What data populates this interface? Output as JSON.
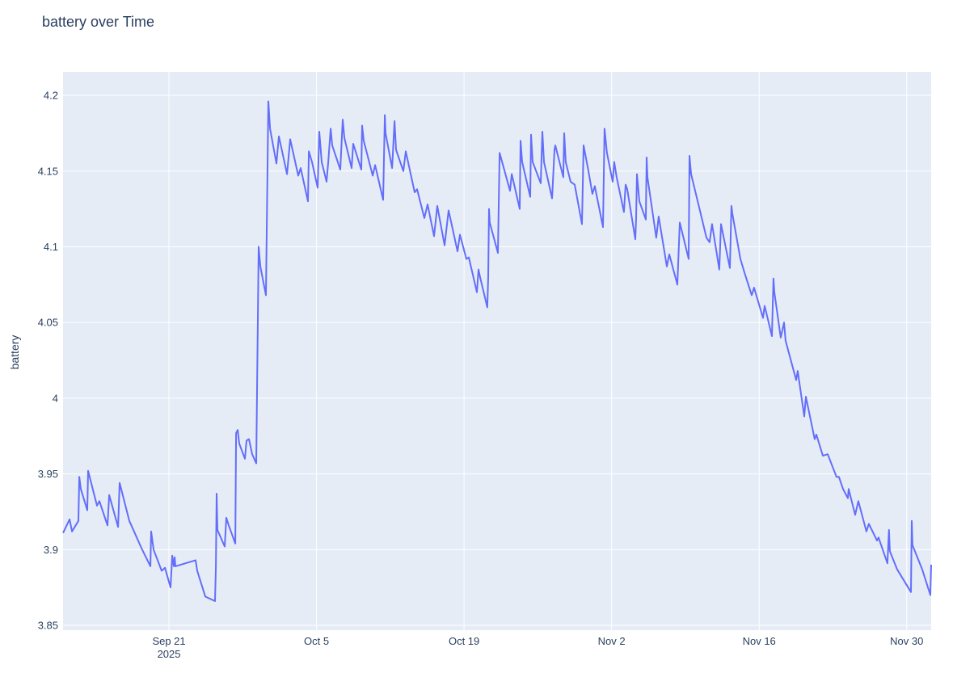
{
  "chart_data": {
    "type": "line",
    "title": "battery over Time",
    "xlabel": "",
    "ylabel": "battery",
    "x_unit": "days since 2025-09-21",
    "xlim": [
      -10.05,
      72.32
    ],
    "ylim": [
      3.8468,
      4.2155
    ],
    "grid": true,
    "legend": "none",
    "line_color": "#636efa",
    "background_color": "#e5ecf6",
    "grid_color": "#ffffff",
    "text_color": "#2a3f5f",
    "x_ticks": [
      {
        "value": 0,
        "label": "Sep 21",
        "sublabel": "2025"
      },
      {
        "value": 14,
        "label": "Oct 5"
      },
      {
        "value": 28,
        "label": "Oct 19"
      },
      {
        "value": 42,
        "label": "Nov 2"
      },
      {
        "value": 56,
        "label": "Nov 16"
      },
      {
        "value": 70,
        "label": "Nov 30"
      }
    ],
    "y_ticks": [
      {
        "value": 3.85,
        "label": "3.85"
      },
      {
        "value": 3.9,
        "label": "3.9"
      },
      {
        "value": 3.95,
        "label": "3.95"
      },
      {
        "value": 4.0,
        "label": "4"
      },
      {
        "value": 4.05,
        "label": "4.05"
      },
      {
        "value": 4.1,
        "label": "4.1"
      },
      {
        "value": 4.15,
        "label": "4.15"
      },
      {
        "value": 4.2,
        "label": "4.2"
      }
    ],
    "series": [
      {
        "name": "battery",
        "x": [
          -10.05,
          -9.43,
          -9.2,
          -8.59,
          -8.51,
          -8.36,
          -7.75,
          -7.67,
          -6.83,
          -6.6,
          -5.83,
          -5.67,
          -4.83,
          -4.68,
          -3.76,
          -2.61,
          -1.76,
          -1.69,
          -1.46,
          -0.69,
          -0.38,
          0.15,
          0.31,
          0.46,
          0.54,
          0.61,
          2.53,
          2.68,
          3.45,
          4.37,
          4.45,
          4.52,
          4.6,
          5.29,
          5.44,
          5.67,
          6.29,
          6.37,
          6.52,
          6.67,
          7.21,
          7.36,
          7.59,
          7.9,
          8.28,
          8.51,
          8.67,
          9.2,
          9.43,
          9.59,
          10.2,
          10.43,
          11.2,
          11.5,
          12.27,
          12.5,
          13.19,
          13.27,
          13.57,
          14.11,
          14.26,
          14.49,
          14.95,
          15.11,
          15.34,
          15.49,
          16.26,
          16.49,
          16.64,
          17.33,
          17.48,
          18.25,
          18.33,
          18.48,
          19.33,
          19.56,
          20.32,
          20.48,
          20.55,
          21.17,
          21.4,
          21.55,
          22.24,
          22.47,
          23.31,
          23.54,
          24.23,
          24.54,
          25.15,
          25.46,
          26.15,
          26.53,
          27.38,
          27.61,
          28.22,
          28.45,
          29.22,
          29.37,
          29.52,
          30.21,
          30.29,
          30.37,
          30.44,
          31.21,
          31.37,
          32.36,
          32.52,
          33.28,
          33.36,
          33.51,
          34.28,
          34.36,
          34.51,
          35.28,
          35.43,
          35.58,
          36.35,
          36.58,
          36.66,
          37.42,
          37.5,
          37.65,
          38.11,
          38.5,
          39.19,
          39.34,
          39.8,
          40.18,
          40.41,
          41.18,
          41.33,
          41.56,
          42.1,
          42.25,
          42.48,
          43.17,
          43.33,
          43.48,
          44.25,
          44.33,
          44.4,
          44.63,
          45.25,
          45.32,
          45.4,
          46.24,
          46.47,
          47.24,
          47.47,
          48.24,
          48.47,
          49.31,
          49.39,
          49.54,
          50.38,
          51.0,
          51.3,
          51.53,
          52.22,
          52.38,
          53.22,
          53.37,
          53.45,
          54.22,
          54.6,
          55.29,
          55.52,
          56.37,
          56.52,
          57.21,
          57.36,
          57.44,
          58.05,
          58.36,
          58.51,
          59.51,
          59.66,
          60.28,
          60.43,
          61.27,
          61.43,
          62.04,
          62.5,
          63.34,
          63.57,
          63.96,
          64.42,
          64.49,
          65.11,
          65.41,
          66.18,
          66.41,
          67.18,
          67.33,
          68.17,
          68.32,
          68.4,
          69.09,
          70.4,
          70.48,
          70.55,
          71.47,
          72.24,
          72.32
        ],
        "y": [
          3.911,
          3.92,
          3.912,
          3.919,
          3.948,
          3.94,
          3.926,
          3.952,
          3.929,
          3.932,
          3.916,
          3.936,
          3.915,
          3.944,
          3.919,
          3.901,
          3.889,
          3.912,
          3.9,
          3.886,
          3.888,
          3.875,
          3.896,
          3.889,
          3.895,
          3.889,
          3.893,
          3.886,
          3.869,
          3.866,
          3.889,
          3.937,
          3.913,
          3.902,
          3.921,
          3.916,
          3.904,
          3.977,
          3.979,
          3.97,
          3.96,
          3.972,
          3.973,
          3.963,
          3.957,
          4.1,
          4.087,
          4.068,
          4.196,
          4.178,
          4.155,
          4.173,
          4.148,
          4.171,
          4.147,
          4.152,
          4.13,
          4.163,
          4.156,
          4.139,
          4.176,
          4.156,
          4.143,
          4.156,
          4.178,
          4.167,
          4.151,
          4.184,
          4.172,
          4.152,
          4.168,
          4.151,
          4.18,
          4.17,
          4.147,
          4.154,
          4.131,
          4.187,
          4.175,
          4.152,
          4.183,
          4.164,
          4.15,
          4.163,
          4.136,
          4.138,
          4.119,
          4.128,
          4.107,
          4.127,
          4.101,
          4.124,
          4.097,
          4.108,
          4.092,
          4.093,
          4.07,
          4.085,
          4.08,
          4.06,
          4.08,
          4.125,
          4.116,
          4.096,
          4.162,
          4.137,
          4.148,
          4.125,
          4.17,
          4.156,
          4.133,
          4.174,
          4.156,
          4.142,
          4.176,
          4.156,
          4.132,
          4.164,
          4.167,
          4.146,
          4.175,
          4.156,
          4.143,
          4.141,
          4.115,
          4.167,
          4.15,
          4.135,
          4.14,
          4.113,
          4.178,
          4.162,
          4.143,
          4.156,
          4.146,
          4.123,
          4.141,
          4.138,
          4.105,
          4.119,
          4.148,
          4.13,
          4.118,
          4.159,
          4.146,
          4.106,
          4.12,
          4.087,
          4.095,
          4.075,
          4.116,
          4.092,
          4.16,
          4.148,
          4.124,
          4.106,
          4.103,
          4.115,
          4.085,
          4.115,
          4.086,
          4.127,
          4.122,
          4.092,
          4.083,
          4.068,
          4.073,
          4.053,
          4.061,
          4.041,
          4.079,
          4.07,
          4.04,
          4.05,
          4.038,
          4.012,
          4.018,
          3.988,
          4.001,
          3.973,
          3.976,
          3.962,
          3.963,
          3.948,
          3.948,
          3.94,
          3.934,
          3.94,
          3.923,
          3.932,
          3.912,
          3.917,
          3.906,
          3.908,
          3.891,
          3.913,
          3.899,
          3.887,
          3.872,
          3.919,
          3.903,
          3.887,
          3.87,
          3.89
        ]
      }
    ]
  }
}
